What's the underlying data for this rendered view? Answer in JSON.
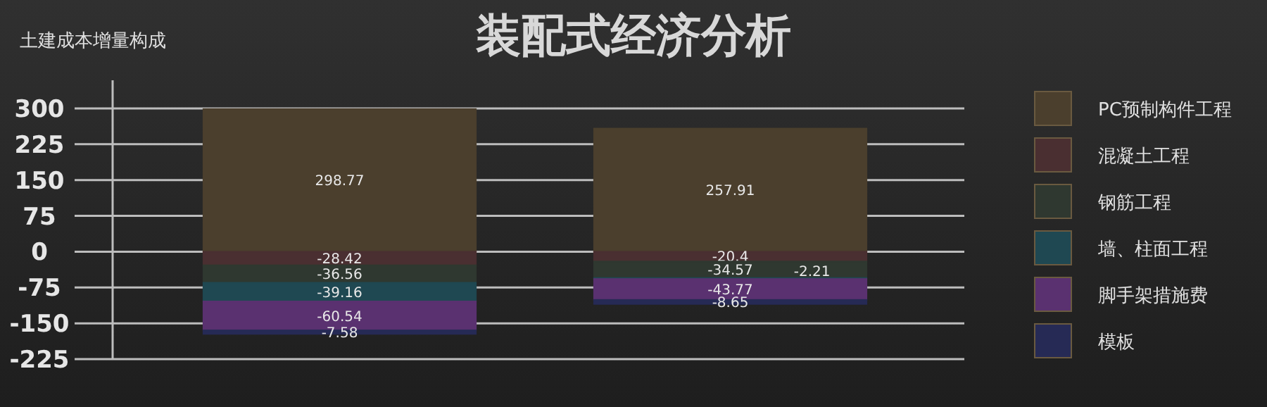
{
  "chart_data": {
    "type": "bar",
    "title": "装配式经济分析",
    "ylabel": "土建成本增量构成",
    "stacked": true,
    "categories": [
      null,
      null
    ],
    "series": [
      {
        "name": "PC预制构件工程",
        "color": "#4b3f2d",
        "values": [
          298.77,
          257.91
        ]
      },
      {
        "name": "混凝土工程",
        "color": "#4a2f31",
        "values": [
          -28.42,
          -20.4
        ]
      },
      {
        "name": "钢筋工程",
        "color": "#2f3830",
        "values": [
          -36.56,
          -34.57
        ]
      },
      {
        "name": "墙、柱面工程",
        "color": "#1f4852",
        "values": [
          -39.16,
          -2.21
        ]
      },
      {
        "name": "脚手架措施费",
        "color": "#5a3170",
        "values": [
          -60.54,
          -43.77
        ]
      },
      {
        "name": "模板",
        "color": "#262a55",
        "values": [
          -7.58,
          -8.65
        ]
      }
    ],
    "ylim": [
      -225,
      300
    ],
    "yticks": [
      -225,
      -150,
      -75,
      0,
      75,
      150,
      225,
      300
    ],
    "grid": "y",
    "legend": "right",
    "tick_labels": "y",
    "data_labels": true
  }
}
